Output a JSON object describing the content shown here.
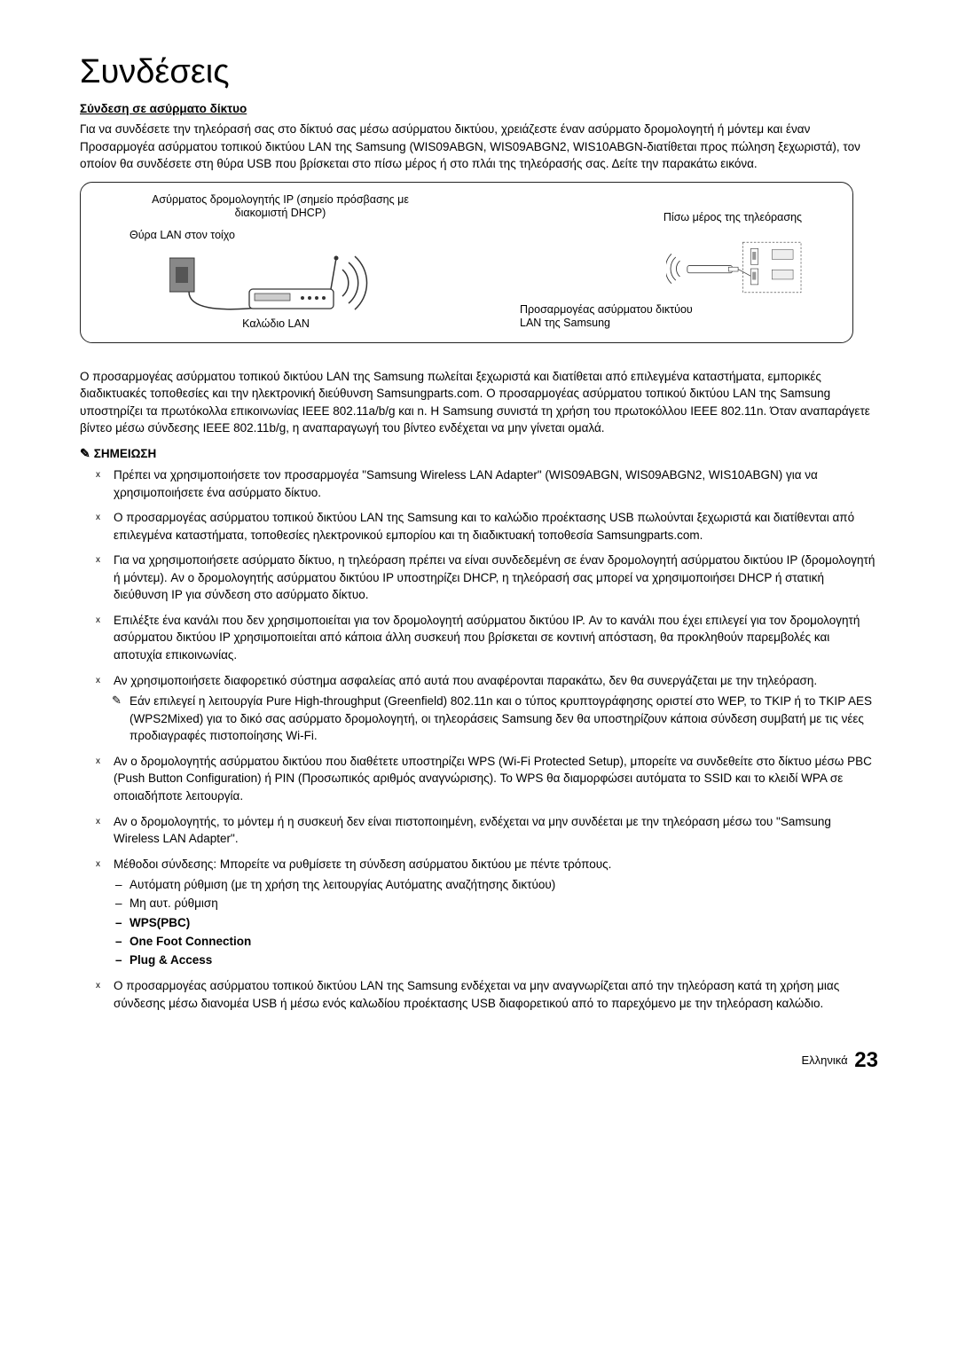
{
  "title": "Συνδέσεις",
  "section_heading": "Σύνδεση σε ασύρματο δίκτυο",
  "intro_paragraph": "Για να συνδέσετε την τηλεόρασή σας στο δίκτυό σας μέσω ασύρματου δικτύου, χρειάζεστε έναν ασύρματο δρομολογητή ή μόντεμ και έναν Προσαρμογέα ασύρματου τοπικού δικτύου LAN της Samsung (WIS09ABGN, WIS09ABGN2, WIS10ABGN-διατίθεται προς πώληση ξεχωριστά), τον οποίον θα συνδέσετε στη θύρα USB που βρίσκεται στο πίσω μέρος ή στο πλάι της τηλεόρασής σας. Δείτε την παρακάτω εικόνα.",
  "diagram": {
    "router_caption": "Ασύρματος δρομολογητής IP\n(σημείο πρόσβασης με διακομιστή DHCP)",
    "wall_port_label": "Θύρα LAN στον τοίχο",
    "lan_cable_label": "Καλώδιο LAN",
    "tv_back_label": "Πίσω μέρος της τηλεόρασης",
    "adapter_label": "Προσαρμογέας ασύρματου\nδικτύου LAN της Samsung"
  },
  "post_diagram_paragraph": "Ο προσαρμογέας ασύρματου τοπικού δικτύου LAN της Samsung πωλείται ξεχωριστά και διατίθεται από επιλεγμένα καταστήματα, εμπορικές διαδικτυακές τοποθεσίες και την ηλεκτρονική διεύθυνση Samsungparts.com. Ο προσαρμογέας ασύρματου τοπικού δικτύου LAN της Samsung υποστηρίζει τα πρωτόκολλα επικοινωνίας IEEE 802.11a/b/g και n. Η Samsung συνιστά τη χρήση του πρωτοκόλλου IEEE 802.11n. Όταν αναπαράγετε βίντεο μέσω σύνδεσης IEEE 802.11b/g, η αναπαραγωγή του βίντεο ενδέχεται να μην γίνεται ομαλά.",
  "note_label": "ΣΗΜΕΙΩΣΗ",
  "bullets": [
    {
      "text": "Πρέπει να χρησιμοποιήσετε τον προσαρμογέα \"Samsung Wireless LAN Adapter\" (WIS09ABGN, WIS09ABGN2, WIS10ABGN) για να χρησιμοποιήσετε ένα ασύρματο δίκτυο."
    },
    {
      "text": "Ο προσαρμογέας ασύρματου τοπικού δικτύου LAN της Samsung και το καλώδιο προέκτασης USB πωλούνται ξεχωριστά και διατίθενται από επιλεγμένα καταστήματα, τοποθεσίες ηλεκτρονικού εμπορίου και τη διαδικτυακή τοποθεσία Samsungparts.com."
    },
    {
      "text": "Για να χρησιμοποιήσετε ασύρματο δίκτυο, η τηλεόραση πρέπει να είναι συνδεδεμένη σε έναν δρομολογητή ασύρματου δικτύου IP (δρομολογητή ή μόντεμ). Αν ο δρομολογητής ασύρματου δικτύου IP υποστηρίζει DHCP, η τηλεόρασή σας μπορεί να χρησιμοποιήσει DHCP ή στατική διεύθυνση IP για σύνδεση στο ασύρματο δίκτυο."
    },
    {
      "text": "Επιλέξτε ένα κανάλι που δεν χρησιμοποιείται για τον δρομολογητή ασύρματου δικτύου IP. Αν το κανάλι που έχει επιλεγεί για τον δρομολογητή ασύρματου δικτύου IP χρησιμοποιείται από κάποια άλλη συσκευή που βρίσκεται σε κοντινή απόσταση, θα προκληθούν παρεμβολές και αποτυχία επικοινωνίας."
    },
    {
      "text": "Αν χρησιμοποιήσετε διαφορετικό σύστημα ασφαλείας από αυτά που αναφέρονται παρακάτω, δεν θα συνεργάζεται με την τηλεόραση.",
      "subnote": "Εάν επιλεγεί η λειτουργία Pure High-throughput (Greenfield) 802.11n και ο τύπος κρυπτογράφησης οριστεί στο WEP, το TKIP ή το TKIP AES (WPS2Mixed) για το δικό σας ασύρματο δρομολογητή, οι τηλεοράσεις Samsung δεν θα υποστηρίζουν κάποια σύνδεση συμβατή με τις νέες προδιαγραφές πιστοποίησης Wi-Fi."
    },
    {
      "text": "Αν ο δρομολογητής ασύρματου δικτύου που διαθέτετε υποστηρίζει WPS (Wi-Fi Protected Setup), μπορείτε να συνδεθείτε στο δίκτυο μέσω PBC (Push Button Configuration) ή PIN (Προσωπικός αριθμός αναγνώρισης). Το WPS θα διαμορφώσει αυτόματα το SSID και το κλειδί WPA σε οποιαδήποτε λειτουργία."
    },
    {
      "text": "Αν ο δρομολογητής, το μόντεμ ή η συσκευή δεν είναι πιστοποιημένη, ενδέχεται να μην συνδέεται με την τηλεόραση μέσω του \"Samsung Wireless LAN Adapter\"."
    },
    {
      "text": "Μέθοδοι σύνδεσης: Μπορείτε να ρυθμίσετε τη σύνδεση ασύρματου δικτύου με πέντε τρόπους.",
      "dashes": [
        {
          "text": "Αυτόματη ρύθμιση (με τη χρήση της λειτουργίας Αυτόματης αναζήτησης δικτύου)",
          "bold": false
        },
        {
          "text": "Μη αυτ. ρύθμιση",
          "bold": false
        },
        {
          "text": "WPS(PBC)",
          "bold": true
        },
        {
          "text": "One Foot Connection",
          "bold": true
        },
        {
          "text": "Plug & Access",
          "bold": true
        }
      ]
    },
    {
      "text": "Ο προσαρμογέας ασύρματου τοπικού δικτύου LAN της Samsung ενδέχεται να μην αναγνωρίζεται από την τηλεόραση κατά τη χρήση μιας σύνδεσης μέσω διανομέα USB ή μέσω ενός καλωδίου προέκτασης USB διαφορετικού από το παρεχόμενο με την τηλεόραση καλώδιο."
    }
  ],
  "footer": {
    "lang": "Ελληνικά",
    "page": "23"
  }
}
